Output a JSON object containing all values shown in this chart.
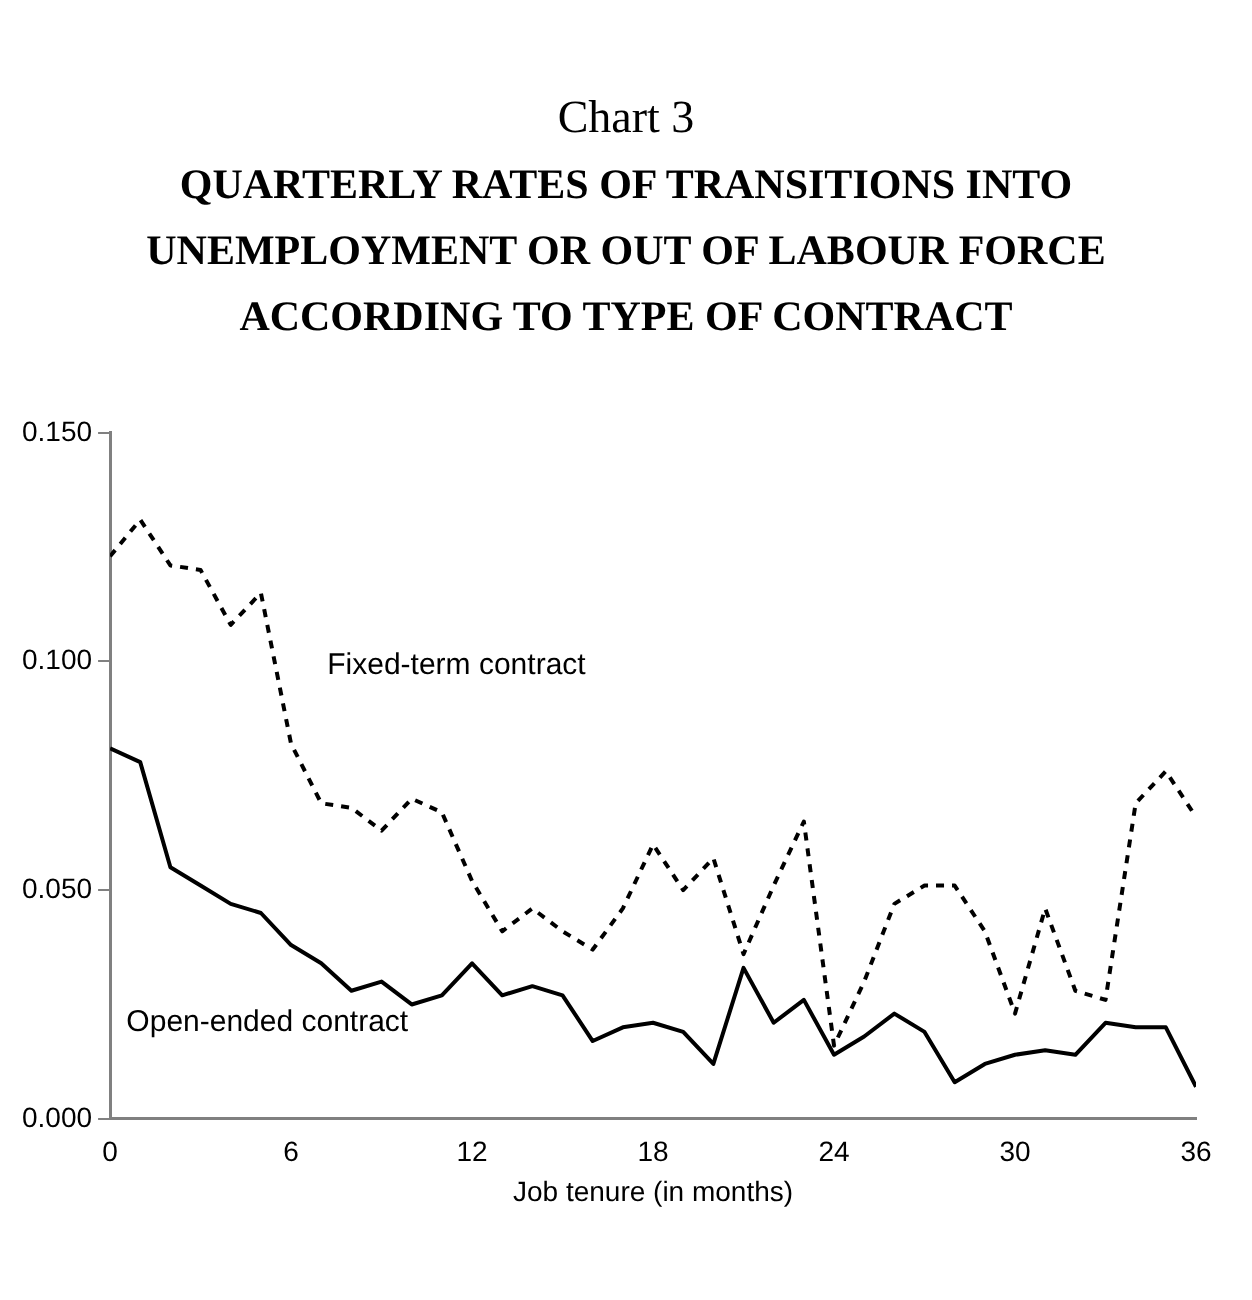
{
  "chart_data": {
    "type": "line",
    "title": "QUARTERLY RATES OF TRANSITIONS INTO UNEMPLOYMENT OR OUT OF LABOUR FORCE ACCORDING TO TYPE OF CONTRACT",
    "subtitle": "Chart 3",
    "xlabel": "Job tenure (in months)",
    "x": [
      0,
      1,
      2,
      3,
      4,
      5,
      6,
      7,
      8,
      9,
      10,
      11,
      12,
      13,
      14,
      15,
      16,
      17,
      18,
      19,
      20,
      21,
      22,
      23,
      24,
      25,
      26,
      27,
      28,
      29,
      30,
      31,
      32,
      33,
      34,
      35,
      36
    ],
    "series": [
      {
        "name": "Fixed-term contract",
        "color": "#000000",
        "line_style": "dashed",
        "values": [
          0.123,
          0.131,
          0.121,
          0.12,
          0.108,
          0.115,
          0.082,
          0.069,
          0.068,
          0.063,
          0.07,
          0.067,
          0.052,
          0.041,
          0.046,
          0.041,
          0.037,
          0.046,
          0.06,
          0.05,
          0.057,
          0.036,
          0.051,
          0.065,
          0.016,
          0.03,
          0.047,
          0.051,
          0.051,
          0.041,
          0.023,
          0.046,
          0.028,
          0.026,
          0.069,
          0.076,
          0.066
        ]
      },
      {
        "name": "Open-ended contract",
        "color": "#000000",
        "line_style": "solid",
        "values": [
          0.081,
          0.078,
          0.055,
          0.051,
          0.047,
          0.045,
          0.038,
          0.034,
          0.028,
          0.03,
          0.025,
          0.027,
          0.034,
          0.027,
          0.029,
          0.027,
          0.017,
          0.02,
          0.021,
          0.019,
          0.012,
          0.033,
          0.021,
          0.026,
          0.014,
          0.018,
          0.023,
          0.019,
          0.008,
          0.012,
          0.014,
          0.015,
          0.014,
          0.021,
          0.02,
          0.02,
          0.007
        ]
      }
    ],
    "xlim": [
      0,
      36
    ],
    "xticks": [
      0,
      6,
      12,
      18,
      24,
      30,
      36
    ],
    "ylim": [
      0,
      0.15
    ],
    "yticks": [
      {
        "value": 0,
        "label": "0.000"
      },
      {
        "value": 0.05,
        "label": "0.050"
      },
      {
        "value": 0.1,
        "label": "0.100"
      },
      {
        "value": 0.15,
        "label": "0.150"
      }
    ],
    "grid": false,
    "legend": false,
    "marker": "none"
  }
}
